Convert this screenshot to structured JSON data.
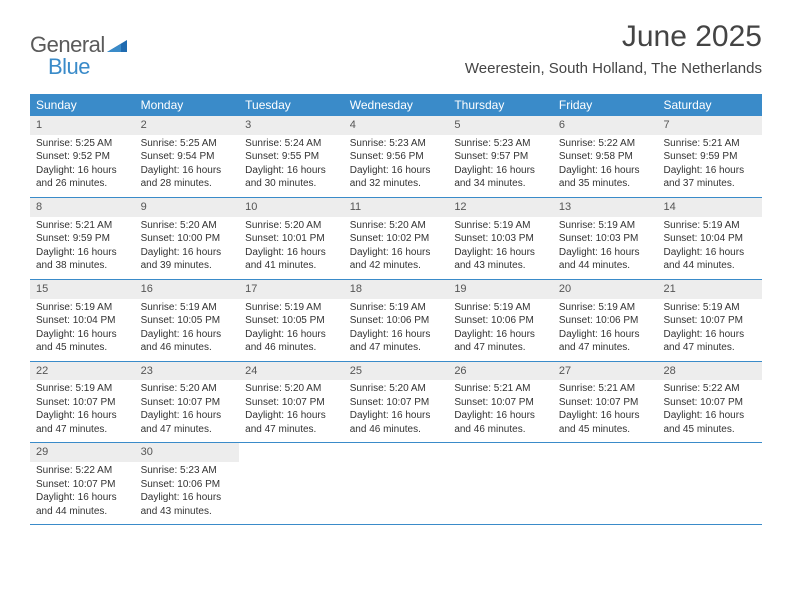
{
  "brand": {
    "word1": "General",
    "word2": "Blue"
  },
  "title": "June 2025",
  "location": "Weerestein, South Holland, The Netherlands",
  "colors": {
    "accent": "#3a8bc9",
    "daynum_bg": "#ededed",
    "text": "#333333"
  },
  "day_headers": [
    "Sunday",
    "Monday",
    "Tuesday",
    "Wednesday",
    "Thursday",
    "Friday",
    "Saturday"
  ],
  "weeks": [
    [
      {
        "n": "1",
        "sr": "Sunrise: 5:25 AM",
        "ss": "Sunset: 9:52 PM",
        "dl": "Daylight: 16 hours and 26 minutes."
      },
      {
        "n": "2",
        "sr": "Sunrise: 5:25 AM",
        "ss": "Sunset: 9:54 PM",
        "dl": "Daylight: 16 hours and 28 minutes."
      },
      {
        "n": "3",
        "sr": "Sunrise: 5:24 AM",
        "ss": "Sunset: 9:55 PM",
        "dl": "Daylight: 16 hours and 30 minutes."
      },
      {
        "n": "4",
        "sr": "Sunrise: 5:23 AM",
        "ss": "Sunset: 9:56 PM",
        "dl": "Daylight: 16 hours and 32 minutes."
      },
      {
        "n": "5",
        "sr": "Sunrise: 5:23 AM",
        "ss": "Sunset: 9:57 PM",
        "dl": "Daylight: 16 hours and 34 minutes."
      },
      {
        "n": "6",
        "sr": "Sunrise: 5:22 AM",
        "ss": "Sunset: 9:58 PM",
        "dl": "Daylight: 16 hours and 35 minutes."
      },
      {
        "n": "7",
        "sr": "Sunrise: 5:21 AM",
        "ss": "Sunset: 9:59 PM",
        "dl": "Daylight: 16 hours and 37 minutes."
      }
    ],
    [
      {
        "n": "8",
        "sr": "Sunrise: 5:21 AM",
        "ss": "Sunset: 9:59 PM",
        "dl": "Daylight: 16 hours and 38 minutes."
      },
      {
        "n": "9",
        "sr": "Sunrise: 5:20 AM",
        "ss": "Sunset: 10:00 PM",
        "dl": "Daylight: 16 hours and 39 minutes."
      },
      {
        "n": "10",
        "sr": "Sunrise: 5:20 AM",
        "ss": "Sunset: 10:01 PM",
        "dl": "Daylight: 16 hours and 41 minutes."
      },
      {
        "n": "11",
        "sr": "Sunrise: 5:20 AM",
        "ss": "Sunset: 10:02 PM",
        "dl": "Daylight: 16 hours and 42 minutes."
      },
      {
        "n": "12",
        "sr": "Sunrise: 5:19 AM",
        "ss": "Sunset: 10:03 PM",
        "dl": "Daylight: 16 hours and 43 minutes."
      },
      {
        "n": "13",
        "sr": "Sunrise: 5:19 AM",
        "ss": "Sunset: 10:03 PM",
        "dl": "Daylight: 16 hours and 44 minutes."
      },
      {
        "n": "14",
        "sr": "Sunrise: 5:19 AM",
        "ss": "Sunset: 10:04 PM",
        "dl": "Daylight: 16 hours and 44 minutes."
      }
    ],
    [
      {
        "n": "15",
        "sr": "Sunrise: 5:19 AM",
        "ss": "Sunset: 10:04 PM",
        "dl": "Daylight: 16 hours and 45 minutes."
      },
      {
        "n": "16",
        "sr": "Sunrise: 5:19 AM",
        "ss": "Sunset: 10:05 PM",
        "dl": "Daylight: 16 hours and 46 minutes."
      },
      {
        "n": "17",
        "sr": "Sunrise: 5:19 AM",
        "ss": "Sunset: 10:05 PM",
        "dl": "Daylight: 16 hours and 46 minutes."
      },
      {
        "n": "18",
        "sr": "Sunrise: 5:19 AM",
        "ss": "Sunset: 10:06 PM",
        "dl": "Daylight: 16 hours and 47 minutes."
      },
      {
        "n": "19",
        "sr": "Sunrise: 5:19 AM",
        "ss": "Sunset: 10:06 PM",
        "dl": "Daylight: 16 hours and 47 minutes."
      },
      {
        "n": "20",
        "sr": "Sunrise: 5:19 AM",
        "ss": "Sunset: 10:06 PM",
        "dl": "Daylight: 16 hours and 47 minutes."
      },
      {
        "n": "21",
        "sr": "Sunrise: 5:19 AM",
        "ss": "Sunset: 10:07 PM",
        "dl": "Daylight: 16 hours and 47 minutes."
      }
    ],
    [
      {
        "n": "22",
        "sr": "Sunrise: 5:19 AM",
        "ss": "Sunset: 10:07 PM",
        "dl": "Daylight: 16 hours and 47 minutes."
      },
      {
        "n": "23",
        "sr": "Sunrise: 5:20 AM",
        "ss": "Sunset: 10:07 PM",
        "dl": "Daylight: 16 hours and 47 minutes."
      },
      {
        "n": "24",
        "sr": "Sunrise: 5:20 AM",
        "ss": "Sunset: 10:07 PM",
        "dl": "Daylight: 16 hours and 47 minutes."
      },
      {
        "n": "25",
        "sr": "Sunrise: 5:20 AM",
        "ss": "Sunset: 10:07 PM",
        "dl": "Daylight: 16 hours and 46 minutes."
      },
      {
        "n": "26",
        "sr": "Sunrise: 5:21 AM",
        "ss": "Sunset: 10:07 PM",
        "dl": "Daylight: 16 hours and 46 minutes."
      },
      {
        "n": "27",
        "sr": "Sunrise: 5:21 AM",
        "ss": "Sunset: 10:07 PM",
        "dl": "Daylight: 16 hours and 45 minutes."
      },
      {
        "n": "28",
        "sr": "Sunrise: 5:22 AM",
        "ss": "Sunset: 10:07 PM",
        "dl": "Daylight: 16 hours and 45 minutes."
      }
    ],
    [
      {
        "n": "29",
        "sr": "Sunrise: 5:22 AM",
        "ss": "Sunset: 10:07 PM",
        "dl": "Daylight: 16 hours and 44 minutes."
      },
      {
        "n": "30",
        "sr": "Sunrise: 5:23 AM",
        "ss": "Sunset: 10:06 PM",
        "dl": "Daylight: 16 hours and 43 minutes."
      },
      {
        "empty": true
      },
      {
        "empty": true
      },
      {
        "empty": true
      },
      {
        "empty": true
      },
      {
        "empty": true
      }
    ]
  ]
}
